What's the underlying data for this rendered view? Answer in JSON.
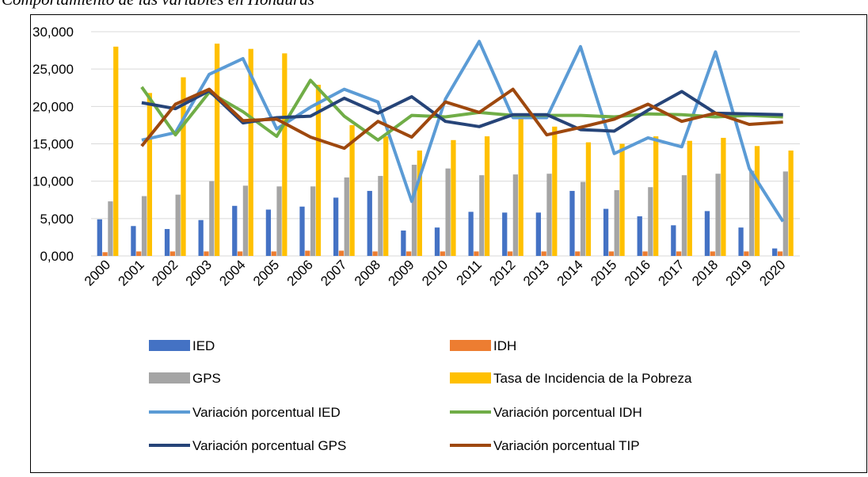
{
  "chart_data": {
    "type": "bar_line",
    "title": "Comportamiento de las variables en Honduras",
    "categories": [
      "2000",
      "2001",
      "2002",
      "2003",
      "2004",
      "2005",
      "2006",
      "2007",
      "2008",
      "2009",
      "2010",
      "2011",
      "2012",
      "2013",
      "2014",
      "2015",
      "2016",
      "2017",
      "2018",
      "2019",
      "2020"
    ],
    "series": [
      {
        "name": "IED",
        "type": "bar",
        "color": "#4472c4",
        "values": [
          4900,
          4000,
          3600,
          4800,
          6700,
          6200,
          6600,
          7800,
          8700,
          3400,
          3800,
          5900,
          5800,
          5800,
          8700,
          6300,
          5300,
          4100,
          6000,
          3800,
          1000
        ]
      },
      {
        "name": "IDH",
        "type": "bar",
        "color": "#ed7d31",
        "values": [
          500,
          600,
          600,
          600,
          600,
          600,
          700,
          700,
          600,
          600,
          600,
          600,
          600,
          600,
          600,
          600,
          600,
          600,
          600,
          600,
          600
        ]
      },
      {
        "name": "GPS",
        "type": "bar",
        "color": "#a5a5a5",
        "values": [
          7300,
          8000,
          8200,
          10000,
          9400,
          9300,
          9300,
          10500,
          10700,
          12200,
          11700,
          10800,
          10900,
          11000,
          9900,
          8800,
          9200,
          10800,
          11000,
          11400,
          11300
        ]
      },
      {
        "name": "Tasa de Incidencia de la Pobreza",
        "type": "bar",
        "color": "#ffc000",
        "values": [
          28000,
          21800,
          23900,
          28400,
          27700,
          27100,
          22900,
          17500,
          16000,
          14100,
          15500,
          16000,
          18800,
          17300,
          15200,
          15000,
          16000,
          15400,
          15800,
          14700,
          14100
        ]
      },
      {
        "name": "Variación porcentual IED",
        "type": "line",
        "color": "#5b9bd5",
        "values": [
          null,
          15500,
          16500,
          24300,
          26400,
          17000,
          19900,
          22300,
          20600,
          7300,
          21000,
          28700,
          18500,
          18500,
          28000,
          13700,
          15800,
          14600,
          27300,
          11700,
          4600
        ]
      },
      {
        "name": "Variación porcentual IDH",
        "type": "line",
        "color": "#70ad47",
        "values": [
          null,
          22600,
          16200,
          21900,
          19300,
          16000,
          23500,
          18700,
          15500,
          18800,
          18600,
          19200,
          18800,
          18800,
          18800,
          18600,
          19000,
          18900,
          18600,
          18800,
          18600
        ]
      },
      {
        "name": "Variación porcentual GPS",
        "type": "line",
        "color": "#264478",
        "values": [
          null,
          20500,
          19700,
          22100,
          17800,
          18500,
          18700,
          21100,
          19100,
          21300,
          18000,
          17300,
          18900,
          18900,
          16900,
          16700,
          19500,
          22000,
          19100,
          19000,
          18900
        ]
      },
      {
        "name": "Variación porcentual TIP",
        "type": "line",
        "color": "#9e480e",
        "values": [
          null,
          14700,
          20300,
          22300,
          18100,
          18300,
          15900,
          14400,
          18000,
          15900,
          20600,
          19200,
          22300,
          16200,
          17200,
          18300,
          20300,
          18000,
          19100,
          17600,
          17900
        ]
      }
    ],
    "ylim": [
      0,
      30000
    ],
    "yticks": [
      {
        "value": 0,
        "label": "0,000"
      },
      {
        "value": 5000,
        "label": "5,000"
      },
      {
        "value": 10000,
        "label": "10,000"
      },
      {
        "value": 15000,
        "label": "15,000"
      },
      {
        "value": 20000,
        "label": "20,000"
      },
      {
        "value": 25000,
        "label": "25,000"
      },
      {
        "value": 30000,
        "label": "30,000"
      }
    ],
    "grid": true,
    "legend": "bottom"
  }
}
